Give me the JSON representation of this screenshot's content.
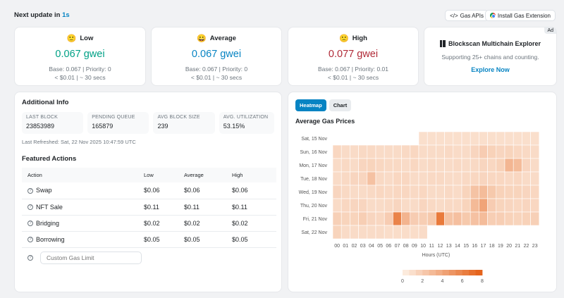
{
  "header": {
    "next_update_prefix": "Next update in",
    "next_update_value": "1s",
    "gas_apis_label": "Gas APIs",
    "gas_apis_icon": "code-icon",
    "extension_label": "Install Gas Extension"
  },
  "tiers": [
    {
      "emoji": "🙂",
      "label": "Low",
      "price": "0.067 gwei",
      "base_priority": "Base: 0.067 | Priority: 0",
      "cost_time": "< $0.01 | ~ 30 secs",
      "color": "#00a186"
    },
    {
      "emoji": "😀",
      "label": "Average",
      "price": "0.067 gwei",
      "base_priority": "Base: 0.067 | Priority: 0",
      "cost_time": "< $0.01 | ~ 30 secs",
      "color": "#0784c3"
    },
    {
      "emoji": "🙁",
      "label": "High",
      "price": "0.077 gwei",
      "base_priority": "Base: 0.067 | Priority: 0.01",
      "cost_time": "< $0.01 | ~ 30 secs",
      "color": "#b02a37"
    }
  ],
  "ad": {
    "badge": "Ad",
    "title": "Blockscan Multichain Explorer",
    "subtitle": "Supporting 25+ chains and counting.",
    "link": "Explore Now"
  },
  "info": {
    "title": "Additional Info",
    "stats": [
      {
        "label": "LAST BLOCK",
        "value": "23853989"
      },
      {
        "label": "PENDING QUEUE",
        "value": "165879"
      },
      {
        "label": "AVG BLOCK SIZE",
        "value": "239"
      },
      {
        "label": "AVG. UTILIZATION",
        "value": "53.15%"
      }
    ],
    "last_refreshed": "Last Refreshed: Sat, 22 Nov 2025 10:47:59 UTC",
    "featured_title": "Featured Actions",
    "columns": [
      "Action",
      "Low",
      "Average",
      "High"
    ],
    "actions": [
      {
        "name": "Swap",
        "low": "$0.06",
        "avg": "$0.06",
        "high": "$0.06"
      },
      {
        "name": "NFT Sale",
        "low": "$0.11",
        "avg": "$0.11",
        "high": "$0.11"
      },
      {
        "name": "Bridging",
        "low": "$0.02",
        "avg": "$0.02",
        "high": "$0.02"
      },
      {
        "name": "Borrowing",
        "low": "$0.05",
        "avg": "$0.05",
        "high": "$0.05"
      }
    ],
    "custom_gas_placeholder": "Custom Gas Limit"
  },
  "chart_tabs": {
    "heatmap": "Heatmap",
    "chart": "Chart"
  },
  "chart_data": {
    "type": "heatmap",
    "title": "Average Gas Prices",
    "xlabel": "Hours (UTC)",
    "x": [
      "00",
      "01",
      "02",
      "03",
      "04",
      "05",
      "06",
      "07",
      "08",
      "09",
      "10",
      "11",
      "12",
      "13",
      "14",
      "15",
      "16",
      "17",
      "18",
      "19",
      "20",
      "21",
      "22",
      "23"
    ],
    "y": [
      "Sat, 15 Nov",
      "Sun, 16 Nov",
      "Mon, 17 Nov",
      "Tue, 18 Nov",
      "Wed, 19 Nov",
      "Thu, 20 Nov",
      "Fri, 21 Nov",
      "Sat, 22 Nov"
    ],
    "values": [
      [
        null,
        null,
        null,
        null,
        null,
        null,
        null,
        null,
        null,
        null,
        1,
        1,
        1,
        1,
        1,
        1,
        1,
        1,
        1,
        1,
        1,
        1,
        1,
        1
      ],
      [
        1.4,
        1.2,
        1.2,
        1.3,
        1.3,
        1.2,
        1.2,
        1.2,
        1.3,
        1.4,
        1.2,
        1.2,
        1.2,
        1.3,
        1.2,
        1.2,
        1.5,
        2.0,
        1.7,
        1.5,
        1.6,
        1.4,
        1.3,
        1.2
      ],
      [
        1.2,
        1.3,
        1.2,
        1.5,
        1.6,
        1.4,
        1.3,
        1.3,
        1.2,
        1.4,
        1.2,
        1.3,
        1.2,
        1.2,
        1.3,
        1.2,
        1.3,
        1.5,
        1.4,
        1.7,
        3.2,
        2.9,
        1.5,
        1.2
      ],
      [
        1.2,
        1.3,
        1.5,
        1.5,
        2.6,
        1.3,
        1.2,
        1.4,
        1.4,
        1.2,
        1.2,
        1.3,
        1.3,
        1.2,
        1.2,
        1.3,
        1.4,
        1.5,
        1.4,
        1.4,
        1.3,
        1.4,
        1.2,
        1.2
      ],
      [
        1.5,
        1.3,
        1.2,
        1.2,
        1.3,
        1.4,
        1.3,
        1.4,
        1.4,
        1.3,
        1.4,
        1.2,
        1.2,
        1.3,
        1.2,
        1.6,
        2.5,
        2.9,
        2.2,
        1.7,
        1.6,
        1.6,
        1.5,
        1.4
      ],
      [
        1.2,
        1.4,
        1.5,
        1.5,
        1.2,
        1.2,
        1.3,
        1.5,
        1.2,
        1.2,
        1.5,
        1.3,
        1.2,
        1.3,
        1.3,
        1.6,
        3.0,
        4.2,
        2.0,
        1.6,
        1.5,
        1.4,
        1.5,
        1.4
      ],
      [
        1.8,
        1.6,
        1.6,
        1.9,
        1.5,
        1.4,
        2.0,
        6.0,
        3.3,
        2.0,
        1.9,
        2.2,
        6.5,
        2.5,
        2.7,
        2.2,
        2.6,
        2.9,
        1.9,
        1.9,
        1.7,
        1.6,
        1.7,
        1.8
      ],
      [
        1.6,
        1.2,
        1.2,
        1.2,
        1.2,
        1.2,
        1.1,
        1.1,
        1.1,
        1.1,
        1.2,
        null,
        null,
        null,
        null,
        null,
        null,
        null,
        null,
        null,
        null,
        null,
        null,
        null
      ]
    ],
    "scale": {
      "min": 0,
      "max": 8,
      "ticks": [
        0,
        2,
        4,
        6,
        8
      ],
      "low_color": "#fdf1e6",
      "high_color": "#e45e14"
    }
  }
}
